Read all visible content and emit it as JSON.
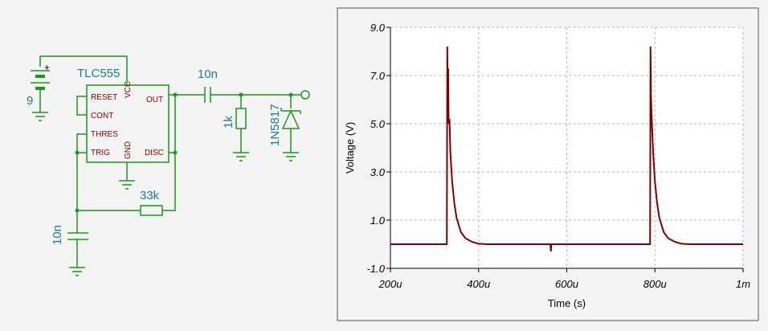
{
  "schematic": {
    "battery": {
      "value": "9",
      "polarity": "+"
    },
    "chip": {
      "name": "TLC555",
      "pins": [
        "RESET",
        "CONT",
        "THRES",
        "TRIG",
        "VCC",
        "GND",
        "OUT",
        "DISC"
      ]
    },
    "c_out": "10n",
    "r_load": "1k",
    "diode": "1N5817",
    "r_timing": "33k",
    "c_timing": "10n"
  },
  "chart_data": {
    "type": "line",
    "x_label": "Time (s)",
    "y_label": "Voltage (V)",
    "color": "#800000",
    "grid": true,
    "x": [
      0.0002,
      0.000328,
      0.000329,
      0.00033,
      0.000331,
      0.000332,
      0.000334,
      0.000336,
      0.00034,
      0.000345,
      0.00035,
      0.00036,
      0.00037,
      0.000385,
      0.0004,
      0.00042,
      0.000563,
      0.000564,
      0.000565,
      0.000789,
      0.00079,
      0.000791,
      0.000792,
      0.000796,
      0.0008,
      0.000805,
      0.00081,
      0.00082,
      0.00083,
      0.000845,
      0.00086,
      0.00088,
      0.001
    ],
    "values": [
      0,
      0,
      8.2,
      6.0,
      7.3,
      5.0,
      5.2,
      3.8,
      2.6,
      1.7,
      1.1,
      0.5,
      0.25,
      0.1,
      0.02,
      0,
      0,
      -0.3,
      0,
      0,
      8.2,
      6.2,
      5.5,
      3.8,
      2.6,
      1.7,
      1.1,
      0.5,
      0.25,
      0.1,
      0.02,
      0,
      0
    ],
    "xlim": [
      0.0002,
      0.001
    ],
    "ylim": [
      -1,
      9
    ],
    "xticks": [
      {
        "value": 0.0002,
        "label": "200u"
      },
      {
        "value": 0.0004,
        "label": "400u"
      },
      {
        "value": 0.0006,
        "label": "600u"
      },
      {
        "value": 0.0008,
        "label": "800u"
      },
      {
        "value": 0.001,
        "label": "1m"
      }
    ],
    "yticks": [
      {
        "value": -1,
        "label": "-1.0"
      },
      {
        "value": 1,
        "label": "1.0"
      },
      {
        "value": 3,
        "label": "3.0"
      },
      {
        "value": 5,
        "label": "5.0"
      },
      {
        "value": 7,
        "label": "7.0"
      },
      {
        "value": 9,
        "label": "9.0"
      }
    ]
  }
}
